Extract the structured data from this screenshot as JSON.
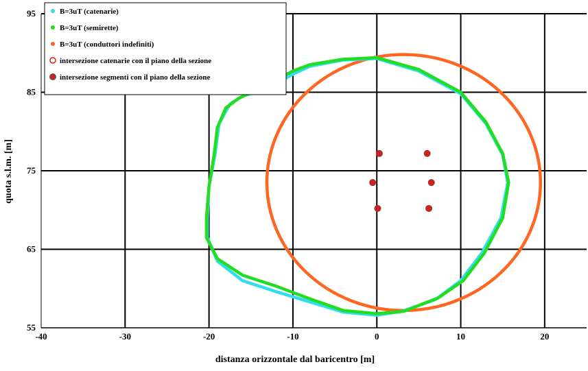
{
  "chart_data": {
    "type": "scatter",
    "xlabel": "distanza orizzontale dal baricentro [m]",
    "ylabel": "quota s.l.m. [m]",
    "xlim": [
      -40,
      25
    ],
    "ylim": [
      55,
      95
    ],
    "x_ticks": [
      "-40",
      "-30",
      "-20",
      "-10",
      "0",
      "10",
      "20"
    ],
    "y_ticks": [
      "55",
      "65",
      "75",
      "85",
      "95"
    ],
    "grid": true,
    "legend_position": "top-left",
    "series": [
      {
        "name": "B=3uT (catenarie)",
        "color": "#33ddee",
        "kind": "closed-curve",
        "points": [
          [
            0,
            89.3
          ],
          [
            5,
            87.7
          ],
          [
            10,
            84.8
          ],
          [
            13,
            81
          ],
          [
            15,
            77
          ],
          [
            15.6,
            73.5
          ],
          [
            14.8,
            69
          ],
          [
            12.5,
            64.5
          ],
          [
            10,
            61
          ],
          [
            7,
            58.6
          ],
          [
            3,
            57.1
          ],
          [
            0,
            56.6
          ],
          [
            -4,
            57
          ],
          [
            -8,
            58.3
          ],
          [
            -12,
            59.6
          ],
          [
            -16,
            61
          ],
          [
            -19,
            63.5
          ],
          [
            -20.2,
            66.5
          ],
          [
            -20.2,
            69
          ],
          [
            -20,
            73
          ],
          [
            -19.3,
            77
          ],
          [
            -18.8,
            81
          ],
          [
            -17.5,
            83.5
          ],
          [
            -16,
            84.5
          ],
          [
            -13,
            85.5
          ],
          [
            -10,
            87.3
          ],
          [
            -8,
            88.3
          ],
          [
            -4,
            89.1
          ],
          [
            0,
            89.3
          ]
        ]
      },
      {
        "name": "B=3uT (semirette)",
        "color": "#22dd22",
        "kind": "closed-curve",
        "points": [
          [
            0,
            89.4
          ],
          [
            5,
            87.9
          ],
          [
            10,
            85
          ],
          [
            13,
            81.2
          ],
          [
            15,
            77.2
          ],
          [
            15.7,
            73.5
          ],
          [
            15,
            69
          ],
          [
            12.8,
            64.5
          ],
          [
            10.3,
            61
          ],
          [
            7.3,
            58.8
          ],
          [
            3.2,
            57.1
          ],
          [
            0,
            56.8
          ],
          [
            -4,
            57.2
          ],
          [
            -8,
            58.7
          ],
          [
            -12,
            60.3
          ],
          [
            -16,
            61.7
          ],
          [
            -19,
            63.8
          ],
          [
            -20.3,
            66.5
          ],
          [
            -20.3,
            69
          ],
          [
            -20,
            73
          ],
          [
            -19.4,
            77
          ],
          [
            -19,
            80.5
          ],
          [
            -18,
            83
          ],
          [
            -16.5,
            84.2
          ],
          [
            -14,
            85.5
          ],
          [
            -10,
            87.7
          ],
          [
            -8,
            88.5
          ],
          [
            -4,
            89.2
          ],
          [
            0,
            89.4
          ]
        ]
      },
      {
        "name": "B=3uT (conduttori indefiniti)",
        "color": "#ff6622",
        "kind": "closed-curve",
        "center": [
          3.2,
          73.5
        ],
        "radius": 16.3
      },
      {
        "name": "intersezione catenarie con il piano della sezione",
        "kind": "open-circle-markers",
        "color": "#dd2222"
      },
      {
        "name": "intersezione segmenti con il piano della sezione",
        "kind": "filled-markers",
        "color": "#cc2222",
        "points": [
          [
            0.3,
            77.2
          ],
          [
            6,
            77.2
          ],
          [
            -0.5,
            73.5
          ],
          [
            6.5,
            73.5
          ],
          [
            0.1,
            70.2
          ],
          [
            6.2,
            70.2
          ]
        ]
      }
    ]
  }
}
